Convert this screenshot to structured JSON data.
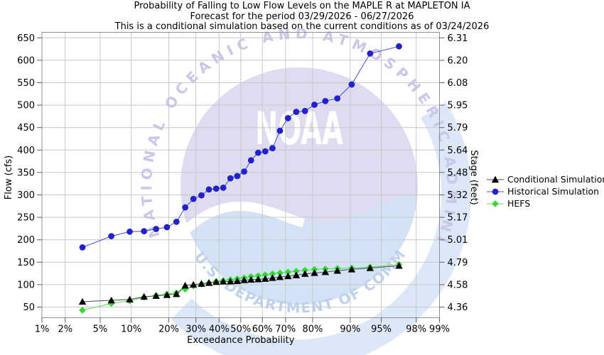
{
  "chart_data": {
    "type": "line",
    "title": "Probability of Falling to Low Flow Levels on the MAPLE R at MAPLETON IA",
    "subtitle": "Forecast for the period 03/29/2026 - 06/27/2026",
    "note": "This is a conditional simulation based on the current conditions as of 03/24/2026",
    "x_axis": {
      "label": "Exceedance Probability",
      "scale": "normal-probability",
      "tick_values": [
        1,
        2,
        5,
        10,
        20,
        30,
        40,
        50,
        60,
        70,
        80,
        90,
        95,
        98,
        99
      ],
      "tick_labels": [
        "1%",
        "2%",
        "5%",
        "10%",
        "20%",
        "30%",
        "40%",
        "50%",
        "60%",
        "70%",
        "80%",
        "90%",
        "95%",
        "98%",
        "99%"
      ],
      "range_percent": [
        1,
        99
      ]
    },
    "y_axis_left": {
      "label": "Flow (cfs)",
      "tick_values": [
        50,
        100,
        150,
        200,
        250,
        300,
        350,
        400,
        450,
        500,
        550,
        600,
        650
      ],
      "ylim": [
        26,
        662
      ]
    },
    "y_axis_right": {
      "label": "Stage (feet)",
      "tick_labels": [
        "4.36",
        "4.58",
        "4.79",
        "5.01",
        "5.17",
        "5.32",
        "5.48",
        "5.64",
        "5.79",
        "5.95",
        "6.08",
        "6.20",
        "6.31"
      ]
    },
    "legend": {
      "position": "right-middle"
    },
    "grid": true,
    "exceedance_probability_percent": [
      3.2,
      6.5,
      9.7,
      12.9,
      16.1,
      19.4,
      22.6,
      25.8,
      29.0,
      32.3,
      35.5,
      38.7,
      41.9,
      45.2,
      48.4,
      51.6,
      54.8,
      58.1,
      61.3,
      64.5,
      67.7,
      71.0,
      74.2,
      77.4,
      80.6,
      83.9,
      87.1,
      90.3,
      93.5,
      96.8
    ],
    "series": [
      {
        "name": "Conditional Simulation",
        "marker": "triangle",
        "marker_color": "#000000",
        "line_color": "#4a4a4a",
        "values": [
          62,
          65,
          67,
          73,
          75,
          77,
          79,
          98,
          100,
          102,
          104,
          106,
          107,
          107,
          108,
          110,
          111,
          112,
          113,
          115,
          117,
          119,
          121,
          124,
          126,
          128,
          131,
          134,
          137,
          142
        ]
      },
      {
        "name": "Historical Simulation",
        "marker": "circle",
        "marker_color": "#2222cc",
        "line_color": "#4444dd",
        "values": [
          183,
          208,
          218,
          219,
          224,
          228,
          240,
          272,
          291,
          299,
          312,
          314,
          316,
          337,
          342,
          352,
          377,
          394,
          397,
          404,
          443,
          471,
          485,
          487,
          501,
          509,
          515,
          546,
          615,
          631
        ]
      },
      {
        "name": "HEFS",
        "marker": "diamond",
        "marker_color": "#33d833",
        "line_color": "#55dd55",
        "values": [
          43,
          58,
          64,
          72,
          76,
          79,
          82,
          90,
          97,
          101,
          104,
          107,
          109,
          111,
          113,
          115,
          118,
          120,
          122,
          124,
          126,
          128,
          130,
          132,
          134,
          135,
          136,
          137,
          139,
          145
        ]
      }
    ]
  },
  "watermark": {
    "name": "noaa-logo",
    "arc_text_top": "NATIONAL OCEANIC AND ATMOSPHERIC ADMINISTRATION",
    "arc_text_bottom": "U.S. DEPARTMENT OF COMMERCE",
    "center_text": "NOAA",
    "colors": {
      "circle": "#dddcf1",
      "arc_top": "#c9c8ea",
      "arc_bottom": "#bdd2ee",
      "wave": "#d4e2f6",
      "swoosh": "#dce8f8",
      "center_text": "#ffffff"
    }
  },
  "style_colors": {
    "grid": "#c8c8c8",
    "border": "#909090",
    "tick": "#606060",
    "text": "#000000"
  }
}
